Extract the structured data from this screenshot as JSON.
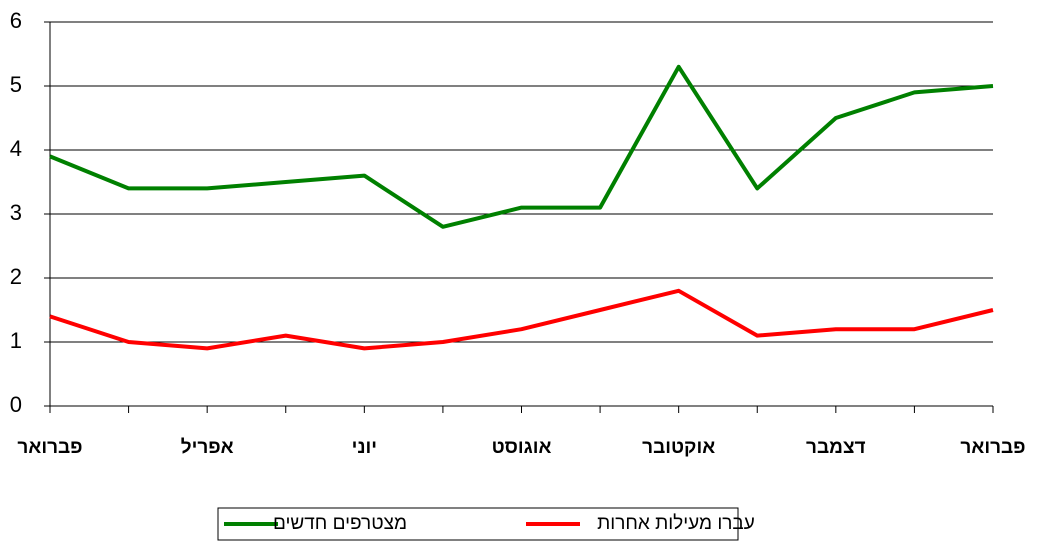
{
  "chart_data": {
    "type": "line",
    "categories": [
      "פברואר",
      null,
      "אפריל",
      null,
      "יוני",
      null,
      "אוגוסט",
      null,
      "אוקטובר",
      null,
      "דצמבר",
      null,
      "פברואר"
    ],
    "series": [
      {
        "name": "מצטרפים חדשים",
        "color": "#008000",
        "values": [
          3.9,
          3.4,
          3.4,
          3.5,
          3.6,
          2.8,
          3.1,
          3.1,
          5.3,
          3.4,
          4.5,
          4.9,
          5.0
        ]
      },
      {
        "name": "עברו מעילות אחרות",
        "color": "#ff0000",
        "values": [
          1.4,
          1.0,
          0.9,
          1.1,
          0.9,
          1.0,
          1.2,
          1.5,
          1.8,
          1.1,
          1.2,
          1.2,
          1.5
        ]
      }
    ],
    "ylim": [
      0,
      6
    ],
    "yticks": [
      0,
      1,
      2,
      3,
      4,
      5,
      6
    ],
    "grid": true
  }
}
